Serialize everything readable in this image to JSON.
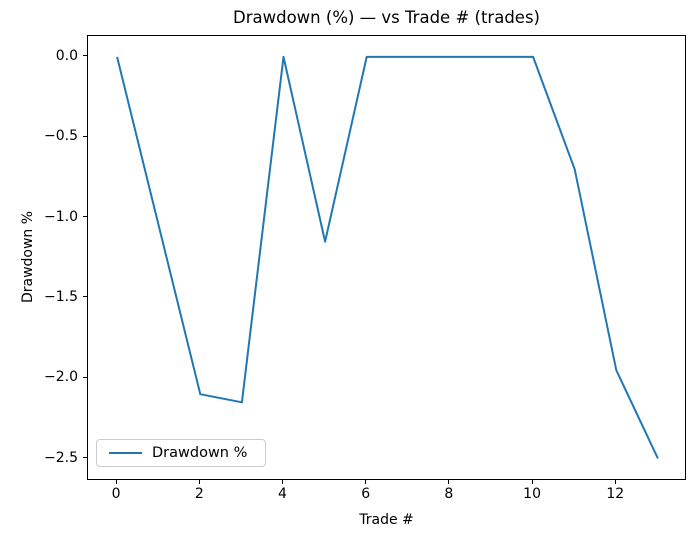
{
  "chart_data": {
    "type": "line",
    "title": "Drawdown (%) — vs Trade # (trades)",
    "xlabel": "Trade #",
    "ylabel": "Drawdown %",
    "x": [
      0,
      1,
      2,
      3,
      4,
      5,
      6,
      7,
      8,
      9,
      10,
      11,
      12,
      13
    ],
    "series": [
      {
        "name": "Drawdown %",
        "color": "#1f77b4",
        "values": [
          0.0,
          -1.05,
          -2.1,
          -2.15,
          0.0,
          -1.15,
          0.0,
          0.0,
          0.0,
          0.0,
          0.0,
          -0.7,
          -1.95,
          -2.5
        ]
      }
    ],
    "xlim": [
      -0.7,
      13.7
    ],
    "ylim": [
      -2.64,
      0.13
    ],
    "xticks": {
      "values": [
        0,
        2,
        4,
        6,
        8,
        10,
        12
      ],
      "labels": [
        "0",
        "2",
        "4",
        "6",
        "8",
        "10",
        "12"
      ]
    },
    "yticks": {
      "values": [
        0.0,
        -0.5,
        -1.0,
        -1.5,
        -2.0,
        -2.5
      ],
      "labels": [
        "0.0",
        "−0.5",
        "−1.0",
        "−1.5",
        "−2.0",
        "−2.5"
      ]
    },
    "legend": {
      "label": "Drawdown %",
      "position": "lower left"
    },
    "grid": false,
    "line_color": "#1f77b4",
    "background_color": "#ffffff"
  }
}
